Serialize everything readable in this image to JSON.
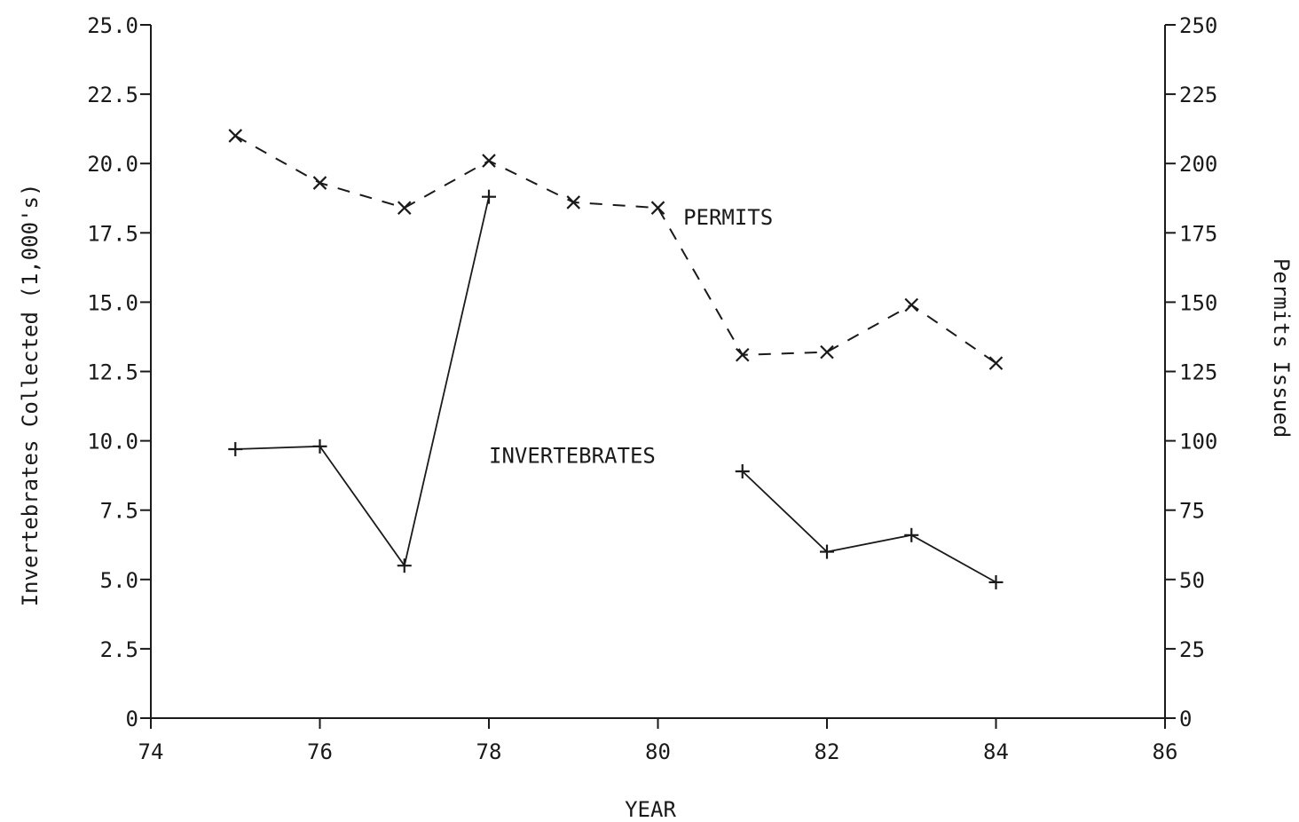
{
  "chart_data": {
    "type": "line",
    "title": "",
    "xlabel": "YEAR",
    "ylabel_left": "Invertebrates Collected (1,000's)",
    "ylabel_right": "Permits Issued",
    "xlim": [
      74,
      86
    ],
    "ylim_left": [
      0,
      25
    ],
    "ylim_right": [
      0,
      250
    ],
    "x_ticks": [
      "74",
      "76",
      "78",
      "80",
      "82",
      "84",
      "86"
    ],
    "y_left_ticks": [
      "0",
      "2.5",
      "5.0",
      "7.5",
      "10.0",
      "12.5",
      "15.0",
      "17.5",
      "20.0",
      "22.5",
      "25.0"
    ],
    "y_right_ticks": [
      "0",
      "25",
      "50",
      "75",
      "100",
      "125",
      "150",
      "175",
      "200",
      "225",
      "250"
    ],
    "grid": false,
    "legend": "none",
    "series": [
      {
        "name": "PERMITS",
        "axis": "right",
        "style": "dashed",
        "marker": "x",
        "segments": [
          [
            {
              "x": 75,
              "y": 210
            },
            {
              "x": 76,
              "y": 193
            },
            {
              "x": 77,
              "y": 184
            },
            {
              "x": 78,
              "y": 201
            },
            {
              "x": 79,
              "y": 186
            },
            {
              "x": 80,
              "y": 184
            },
            {
              "x": 81,
              "y": 131
            },
            {
              "x": 82,
              "y": 132
            },
            {
              "x": 83,
              "y": 149
            },
            {
              "x": 84,
              "y": 128
            }
          ]
        ]
      },
      {
        "name": "INVERTEBRATES",
        "axis": "left",
        "style": "solid",
        "marker": "+",
        "segments": [
          [
            {
              "x": 75,
              "y": 9.7
            },
            {
              "x": 76,
              "y": 9.8
            },
            {
              "x": 77,
              "y": 5.5
            },
            {
              "x": 78,
              "y": 18.8
            }
          ],
          [
            {
              "x": 81,
              "y": 8.9
            },
            {
              "x": 82,
              "y": 6.0
            },
            {
              "x": 83,
              "y": 6.6
            },
            {
              "x": 84,
              "y": 4.9
            }
          ]
        ]
      }
    ],
    "annotations": [
      {
        "text": "PERMITS",
        "x": 80.3,
        "y_left": 17.8
      },
      {
        "text": "INVERTEBRATES",
        "x": 78.0,
        "y_left": 9.2
      }
    ]
  }
}
